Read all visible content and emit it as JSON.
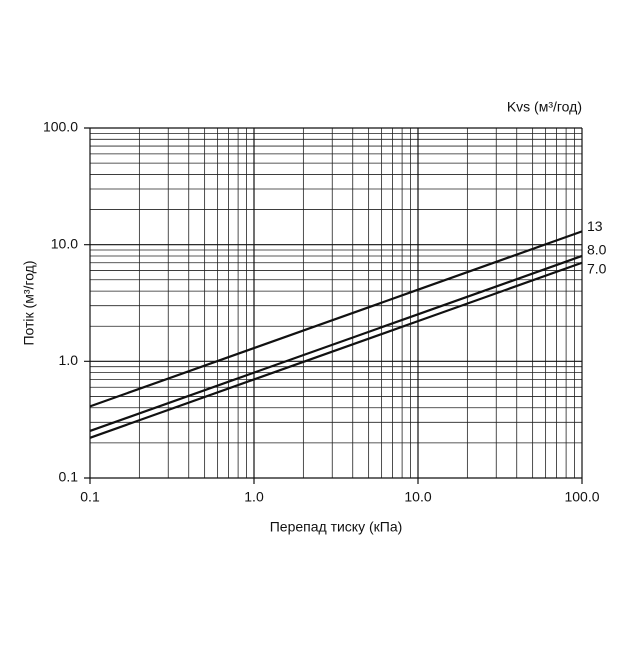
{
  "chart_data": {
    "type": "line",
    "xlabel": "Перепад тиску (кПа)",
    "ylabel": "Потік (м³/год)",
    "legend_title": "Kvs (м³/год)",
    "x": [
      0.1,
      1,
      10,
      100
    ],
    "series": [
      {
        "name": "13",
        "color": "#111111",
        "values": [
          0.411,
          1.3,
          4.11,
          13
        ]
      },
      {
        "name": "8.0",
        "color": "#111111",
        "values": [
          0.253,
          0.8,
          2.53,
          8
        ]
      },
      {
        "name": "7.0",
        "color": "#111111",
        "values": [
          0.221,
          0.7,
          2.21,
          7
        ]
      }
    ],
    "xscale": "log",
    "yscale": "log",
    "xlim": [
      0.1,
      100
    ],
    "ylim": [
      0.1,
      100
    ],
    "xticks": [
      0.1,
      {
        "value": 1,
        "label": "1.0"
      },
      {
        "value": 10,
        "label": "10.0"
      },
      {
        "value": 100,
        "label": "100.0"
      }
    ],
    "yticks": [
      0.1,
      {
        "value": 1,
        "label": "1.0"
      },
      {
        "value": 10,
        "label": "10.0"
      },
      {
        "value": 100,
        "label": "100.0"
      }
    ],
    "xminorticks": [
      0.2,
      0.3,
      0.4,
      0.5,
      0.6,
      0.7,
      0.8,
      0.9,
      2,
      3,
      4,
      5,
      6,
      7,
      8,
      9,
      20,
      30,
      40,
      50,
      60,
      70,
      80,
      90
    ],
    "yminorticks": [
      0.2,
      0.3,
      0.4,
      0.5,
      0.6,
      0.7,
      0.8,
      0.9,
      2,
      3,
      4,
      5,
      6,
      7,
      8,
      9,
      20,
      30,
      40,
      50,
      60,
      70,
      80,
      90
    ],
    "grid": true
  }
}
